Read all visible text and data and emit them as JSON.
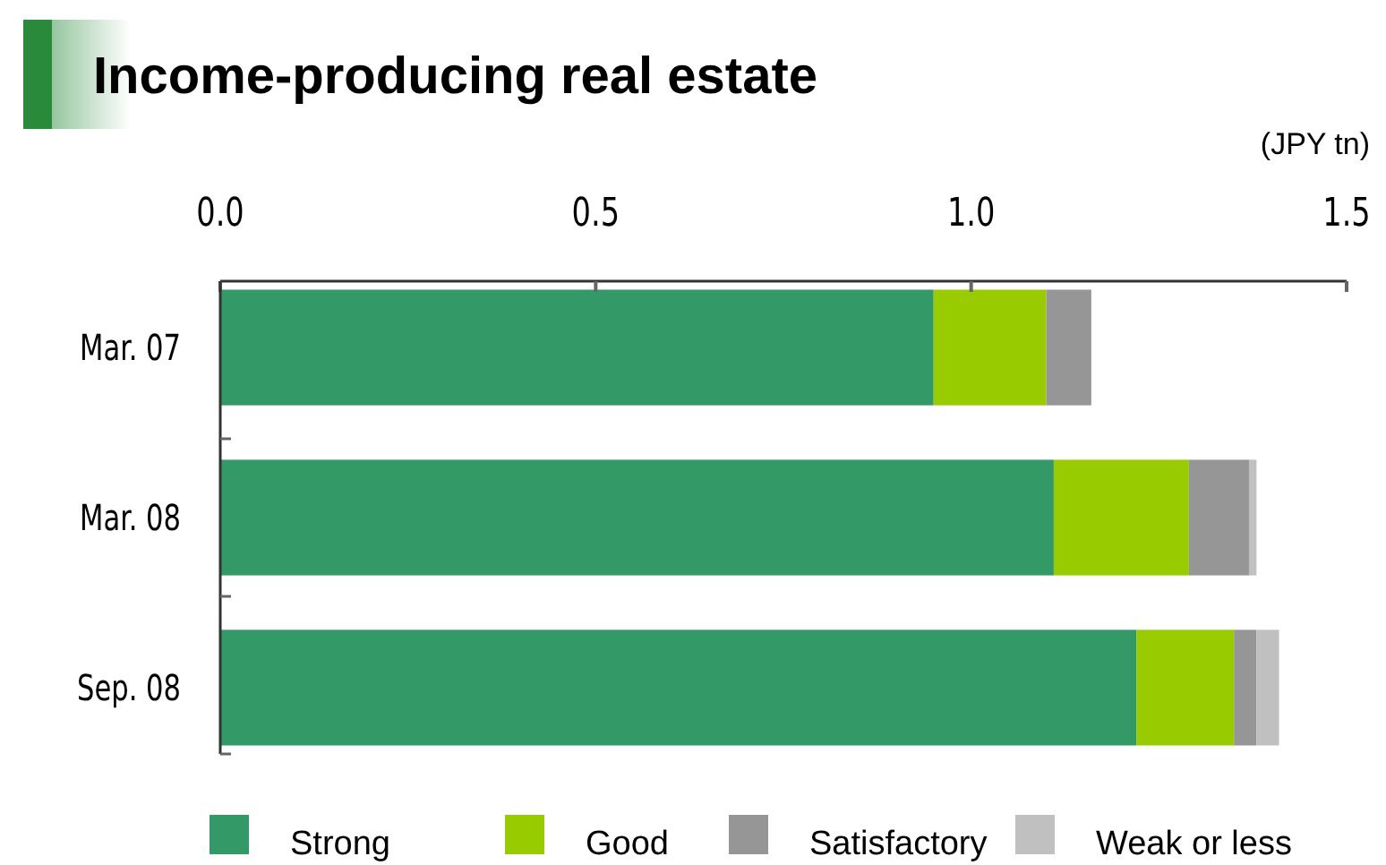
{
  "chart_data": {
    "type": "bar",
    "orientation": "horizontal",
    "stacked": true,
    "title": "Income-producing real estate",
    "xlabel": "(JPY tn)",
    "categories": [
      "Mar. 07",
      "Mar. 08",
      "Sep. 08"
    ],
    "series": [
      {
        "name": "Strong",
        "color": "#339966",
        "values": [
          0.95,
          1.11,
          1.22
        ]
      },
      {
        "name": "Good",
        "color": "#99cc00",
        "values": [
          0.15,
          0.18,
          0.13
        ]
      },
      {
        "name": "Satisfactory",
        "color": "#969696",
        "values": [
          0.06,
          0.08,
          0.03
        ]
      },
      {
        "name": "Weak or less",
        "color": "#c0c0c0",
        "values": [
          0,
          0.01,
          0.03
        ]
      }
    ],
    "xlim": [
      0,
      1.5
    ],
    "xticks": [
      {
        "value": 0,
        "label": "0.0"
      },
      0.5,
      {
        "value": 1,
        "label": "1.0"
      },
      1.5
    ],
    "grid": false,
    "legend": "bottom"
  }
}
